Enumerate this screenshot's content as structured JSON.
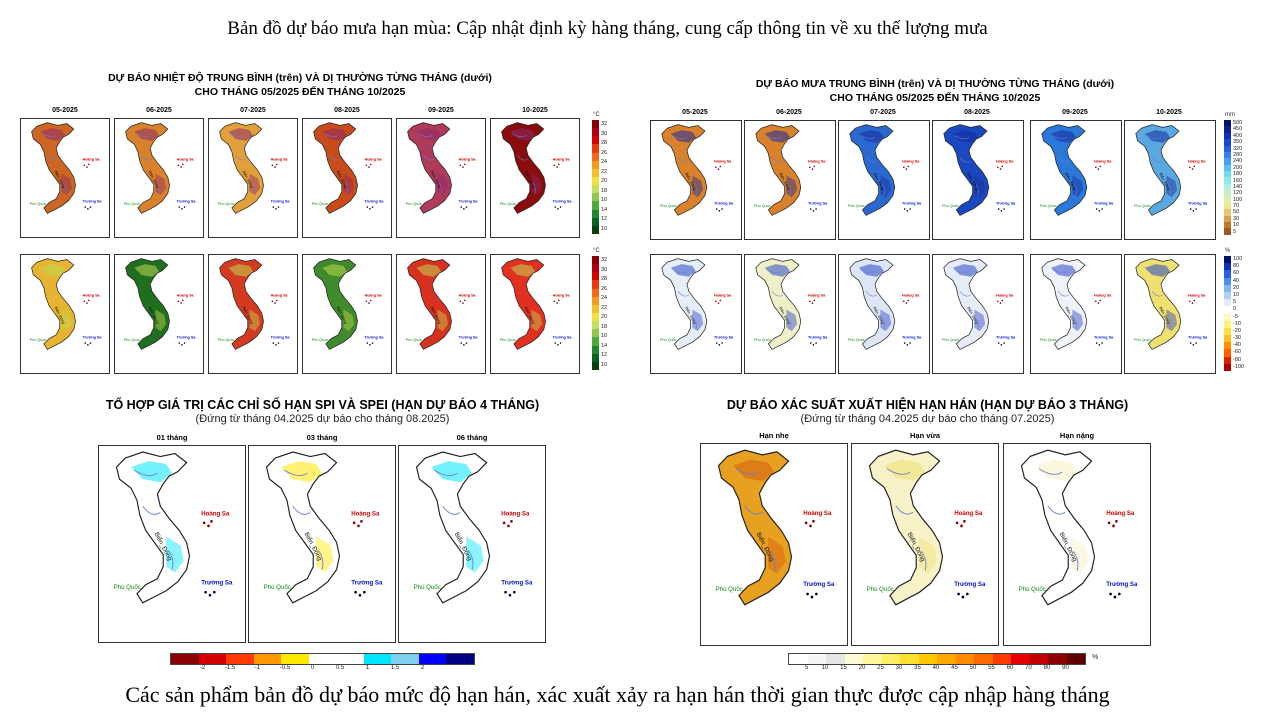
{
  "header": {
    "title": "Bản đồ dự báo mưa hạn mùa: Cập nhật định kỳ hàng tháng, cung cấp thông tin về xu thế lượng mưa"
  },
  "footer": {
    "caption": "Các sản phẩm bản đồ dự báo mức độ hạn hán, xác xuất xảy ra hạn hán thời gian thực được cập nhập hàng tháng"
  },
  "temp_panel": {
    "title_line1": "DỰ BÁO NHIỆT ĐỘ TRUNG BÌNH (trên) VÀ DỊ THƯỜNG TỪNG THÁNG (dưới)",
    "title_line2": "CHO THÁNG 05/2025 ĐẾN THÁNG 10/2025",
    "months": [
      "05-2025",
      "06-2025",
      "07-2025",
      "08-2025",
      "09-2025",
      "10-2025"
    ],
    "unit": "°C",
    "ticks": [
      "32",
      "30",
      "28",
      "26",
      "24",
      "22",
      "20",
      "18",
      "16",
      "14",
      "12",
      "10"
    ],
    "colors_top": [
      "#cc6622",
      "#d9822b",
      "#e2a03a",
      "#c94b1a",
      "#b03a5a",
      "#8a0c0c"
    ],
    "colors_bottom": [
      "#e6b430",
      "#1f6f1f",
      "#d43a20",
      "#3f8a2a",
      "#d83020",
      "#e23020"
    ]
  },
  "rain_panel": {
    "title_line1": "DỰ BÁO MƯA TRUNG BÌNH (trên) VÀ DỊ THƯỜNG TỪNG THÁNG (dưới)",
    "title_line2": "CHO THÁNG 05/2025 ĐẾN THÁNG 10/2025",
    "months": [
      "05-2025",
      "06-2025",
      "07-2025",
      "08-2025",
      "09-2025",
      "10-2025"
    ],
    "unit_top": "mm",
    "ticks_top": [
      "500",
      "450",
      "400",
      "350",
      "320",
      "280",
      "240",
      "200",
      "180",
      "160",
      "140",
      "120",
      "100",
      "70",
      "50",
      "30",
      "10",
      "5"
    ],
    "unit_bottom": "%",
    "ticks_bottom": [
      "100",
      "80",
      "60",
      "40",
      "20",
      "10",
      "5",
      "0",
      "-5",
      "-10",
      "-20",
      "-30",
      "-40",
      "-60",
      "-80",
      "-100"
    ],
    "colors_top": [
      "#d9822b",
      "#d9822b",
      "#2a6ad0",
      "#1a48c0",
      "#2a78d8",
      "#5aa8e0"
    ],
    "colors_bottom": [
      "#e8eef8",
      "#f0f0c8",
      "#dde6f6",
      "#e6ecf8",
      "#f0f2fa",
      "#f0e070"
    ]
  },
  "spi_panel": {
    "title": "TỔ HỢP GIÁ TRỊ CÁC CHỈ SỐ HẠN SPI VÀ SPEI (HẠN DỰ BÁO 4 THÁNG)",
    "subtitle": "(Đứng từ tháng 04.2025 dự báo cho tháng 08.2025)",
    "maps": [
      "01 tháng",
      "03 tháng",
      "06 tháng"
    ],
    "legend_ticks": [
      "-2",
      "-1.5",
      "-1",
      "-0.5",
      "0",
      "0.5",
      "1",
      "1.5",
      "2"
    ],
    "legend_colors": [
      "#8b0000",
      "#d40000",
      "#ff3a00",
      "#ff9a00",
      "#ffe800",
      "#ffffff",
      "#ffffff",
      "#00e6ff",
      "#7fd0f0",
      "#0000ff",
      "#000080"
    ]
  },
  "prob_panel": {
    "title": "DỰ BÁO XÁC SUẤT XUẤT HIỆN HẠN HÁN (HẠN DỰ BÁO 3 THÁNG)",
    "subtitle": "(Đứng từ tháng 04.2025 dự báo cho tháng 07.2025)",
    "maps": [
      "Hạn nhẹ",
      "Hạn vừa",
      "Hạn nặng"
    ],
    "legend_ticks": [
      "5",
      "10",
      "15",
      "20",
      "25",
      "30",
      "35",
      "40",
      "45",
      "50",
      "55",
      "60",
      "70",
      "80",
      "90"
    ],
    "legend_unit": "%",
    "legend_colors": [
      "#ffffff",
      "#f5f5f5",
      "#e6e6e6",
      "#fffbd0",
      "#fff59a",
      "#ffee60",
      "#ffe030",
      "#ffc800",
      "#ffa800",
      "#ff8c00",
      "#ff6a00",
      "#ff3a00",
      "#e60000",
      "#c00000",
      "#8c0000",
      "#600000"
    ]
  },
  "map_labels": {
    "bien_dong": "Biển_Đông",
    "hoang_sa": "Hoàng Sa",
    "truong_sa": "Trường Sa",
    "phu_quoc": "Phú Quốc"
  }
}
